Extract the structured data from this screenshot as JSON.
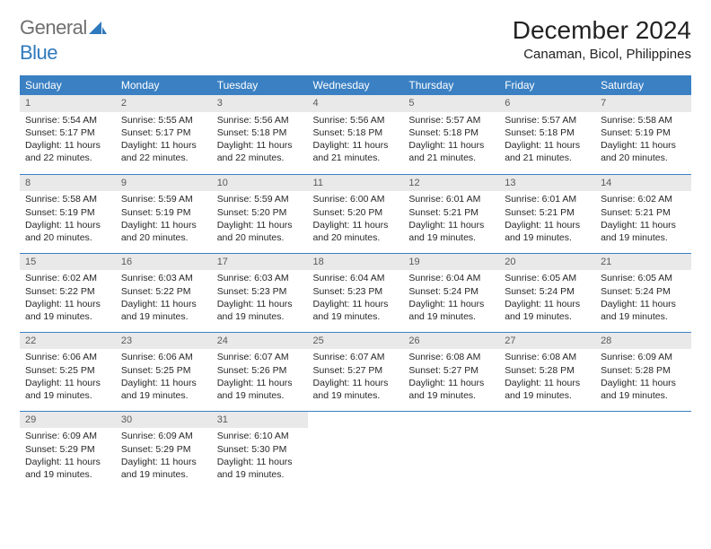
{
  "logo": {
    "word1": "General",
    "word2": "Blue",
    "color_gray": "#6f6f6f",
    "color_blue": "#2f79bd"
  },
  "title": "December 2024",
  "location": "Canaman, Bicol, Philippines",
  "header_bg": "#3a80c3",
  "daynum_bg": "#e9e9e9",
  "columns": [
    "Sunday",
    "Monday",
    "Tuesday",
    "Wednesday",
    "Thursday",
    "Friday",
    "Saturday"
  ],
  "weeks": [
    [
      {
        "n": "1",
        "sr": "5:54 AM",
        "ss": "5:17 PM",
        "dl": "11 hours and 22 minutes."
      },
      {
        "n": "2",
        "sr": "5:55 AM",
        "ss": "5:17 PM",
        "dl": "11 hours and 22 minutes."
      },
      {
        "n": "3",
        "sr": "5:56 AM",
        "ss": "5:18 PM",
        "dl": "11 hours and 22 minutes."
      },
      {
        "n": "4",
        "sr": "5:56 AM",
        "ss": "5:18 PM",
        "dl": "11 hours and 21 minutes."
      },
      {
        "n": "5",
        "sr": "5:57 AM",
        "ss": "5:18 PM",
        "dl": "11 hours and 21 minutes."
      },
      {
        "n": "6",
        "sr": "5:57 AM",
        "ss": "5:18 PM",
        "dl": "11 hours and 21 minutes."
      },
      {
        "n": "7",
        "sr": "5:58 AM",
        "ss": "5:19 PM",
        "dl": "11 hours and 20 minutes."
      }
    ],
    [
      {
        "n": "8",
        "sr": "5:58 AM",
        "ss": "5:19 PM",
        "dl": "11 hours and 20 minutes."
      },
      {
        "n": "9",
        "sr": "5:59 AM",
        "ss": "5:19 PM",
        "dl": "11 hours and 20 minutes."
      },
      {
        "n": "10",
        "sr": "5:59 AM",
        "ss": "5:20 PM",
        "dl": "11 hours and 20 minutes."
      },
      {
        "n": "11",
        "sr": "6:00 AM",
        "ss": "5:20 PM",
        "dl": "11 hours and 20 minutes."
      },
      {
        "n": "12",
        "sr": "6:01 AM",
        "ss": "5:21 PM",
        "dl": "11 hours and 19 minutes."
      },
      {
        "n": "13",
        "sr": "6:01 AM",
        "ss": "5:21 PM",
        "dl": "11 hours and 19 minutes."
      },
      {
        "n": "14",
        "sr": "6:02 AM",
        "ss": "5:21 PM",
        "dl": "11 hours and 19 minutes."
      }
    ],
    [
      {
        "n": "15",
        "sr": "6:02 AM",
        "ss": "5:22 PM",
        "dl": "11 hours and 19 minutes."
      },
      {
        "n": "16",
        "sr": "6:03 AM",
        "ss": "5:22 PM",
        "dl": "11 hours and 19 minutes."
      },
      {
        "n": "17",
        "sr": "6:03 AM",
        "ss": "5:23 PM",
        "dl": "11 hours and 19 minutes."
      },
      {
        "n": "18",
        "sr": "6:04 AM",
        "ss": "5:23 PM",
        "dl": "11 hours and 19 minutes."
      },
      {
        "n": "19",
        "sr": "6:04 AM",
        "ss": "5:24 PM",
        "dl": "11 hours and 19 minutes."
      },
      {
        "n": "20",
        "sr": "6:05 AM",
        "ss": "5:24 PM",
        "dl": "11 hours and 19 minutes."
      },
      {
        "n": "21",
        "sr": "6:05 AM",
        "ss": "5:24 PM",
        "dl": "11 hours and 19 minutes."
      }
    ],
    [
      {
        "n": "22",
        "sr": "6:06 AM",
        "ss": "5:25 PM",
        "dl": "11 hours and 19 minutes."
      },
      {
        "n": "23",
        "sr": "6:06 AM",
        "ss": "5:25 PM",
        "dl": "11 hours and 19 minutes."
      },
      {
        "n": "24",
        "sr": "6:07 AM",
        "ss": "5:26 PM",
        "dl": "11 hours and 19 minutes."
      },
      {
        "n": "25",
        "sr": "6:07 AM",
        "ss": "5:27 PM",
        "dl": "11 hours and 19 minutes."
      },
      {
        "n": "26",
        "sr": "6:08 AM",
        "ss": "5:27 PM",
        "dl": "11 hours and 19 minutes."
      },
      {
        "n": "27",
        "sr": "6:08 AM",
        "ss": "5:28 PM",
        "dl": "11 hours and 19 minutes."
      },
      {
        "n": "28",
        "sr": "6:09 AM",
        "ss": "5:28 PM",
        "dl": "11 hours and 19 minutes."
      }
    ],
    [
      {
        "n": "29",
        "sr": "6:09 AM",
        "ss": "5:29 PM",
        "dl": "11 hours and 19 minutes."
      },
      {
        "n": "30",
        "sr": "6:09 AM",
        "ss": "5:29 PM",
        "dl": "11 hours and 19 minutes."
      },
      {
        "n": "31",
        "sr": "6:10 AM",
        "ss": "5:30 PM",
        "dl": "11 hours and 19 minutes."
      },
      null,
      null,
      null,
      null
    ]
  ],
  "labels": {
    "sunrise": "Sunrise: ",
    "sunset": "Sunset: ",
    "daylight": "Daylight: "
  }
}
